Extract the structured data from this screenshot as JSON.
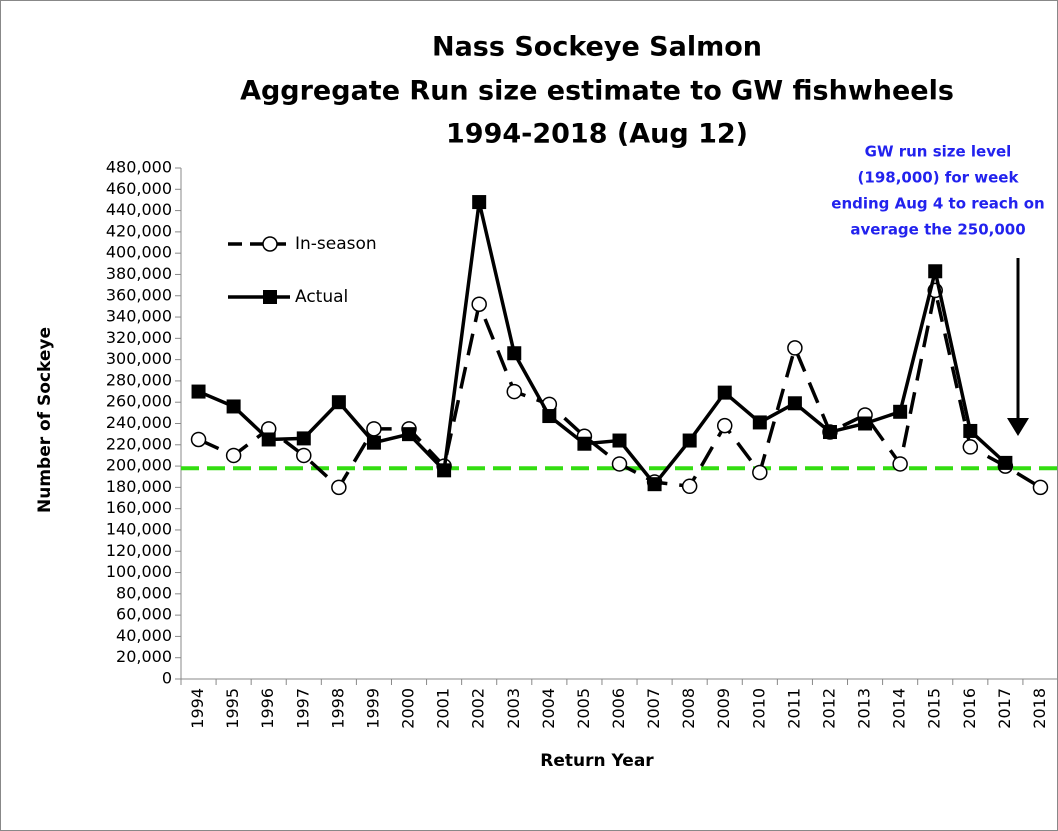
{
  "chart_data": {
    "type": "line",
    "title": [
      "Nass Sockeye Salmon",
      "Aggregate Run size estimate to GW fishwheels",
      "1994-2018 (Aug 12)"
    ],
    "x_label": "Return Year",
    "y_label": "Number of Sockeye",
    "categories": [
      "1994",
      "1995",
      "1996",
      "1997",
      "1998",
      "1999",
      "2000",
      "2001",
      "2002",
      "2003",
      "2004",
      "2005",
      "2006",
      "2007",
      "2008",
      "2009",
      "2010",
      "2011",
      "2012",
      "2013",
      "2014",
      "2015",
      "2016",
      "2017",
      "2018"
    ],
    "series": [
      {
        "name": "In-season",
        "color": "#000000",
        "dashed": true,
        "marker": "circle",
        "values": [
          225000,
          210000,
          235000,
          210000,
          180000,
          235000,
          235000,
          200000,
          352000,
          270000,
          258000,
          228000,
          202000,
          185000,
          181000,
          238000,
          194000,
          311000,
          232000,
          248000,
          202000,
          365000,
          218000,
          200000,
          180000
        ]
      },
      {
        "name": "Actual",
        "color": "#000000",
        "dashed": false,
        "marker": "square",
        "values": [
          270000,
          256000,
          225000,
          226000,
          260000,
          222000,
          230000,
          196000,
          448000,
          306000,
          247000,
          221000,
          224000,
          183000,
          224000,
          269000,
          241000,
          259000,
          232000,
          240000,
          251000,
          383000,
          233000,
          203000,
          null
        ]
      }
    ],
    "reference_line": {
      "value": 198000,
      "color": "#33dd11"
    },
    "annotation": [
      "GW run size level",
      "(198,000) for week",
      "ending Aug 4 to reach on",
      "average the 250,000"
    ],
    "annotation_color": "#2222ee",
    "ylim": [
      0,
      480000
    ],
    "yticks": [
      0,
      {
        "value": 20000,
        "label": "20,000"
      },
      {
        "value": 40000,
        "label": "40,000"
      },
      {
        "value": 60000,
        "label": "60,000"
      },
      {
        "value": 80000,
        "label": "80,000"
      },
      {
        "value": 100000,
        "label": "100,000"
      },
      {
        "value": 120000,
        "label": "120,000"
      },
      {
        "value": 140000,
        "label": "140,000"
      },
      {
        "value": 160000,
        "label": "160,000"
      },
      {
        "value": 180000,
        "label": "180,000"
      },
      {
        "value": 200000,
        "label": "200,000"
      },
      {
        "value": 220000,
        "label": "220,000"
      },
      {
        "value": 240000,
        "label": "240,000"
      },
      {
        "value": 260000,
        "label": "260,000"
      },
      {
        "value": 280000,
        "label": "280,000"
      },
      {
        "value": 300000,
        "label": "300,000"
      },
      {
        "value": 320000,
        "label": "320,000"
      },
      {
        "value": 340000,
        "label": "340,000"
      },
      {
        "value": 360000,
        "label": "360,000"
      },
      {
        "value": 380000,
        "label": "380,000"
      },
      {
        "value": 400000,
        "label": "400,000"
      },
      {
        "value": 420000,
        "label": "420,000"
      },
      {
        "value": 440000,
        "label": "440,000"
      },
      {
        "value": 460000,
        "label": "460,000"
      },
      {
        "value": 480000,
        "label": "480,000"
      }
    ],
    "grid": false
  }
}
